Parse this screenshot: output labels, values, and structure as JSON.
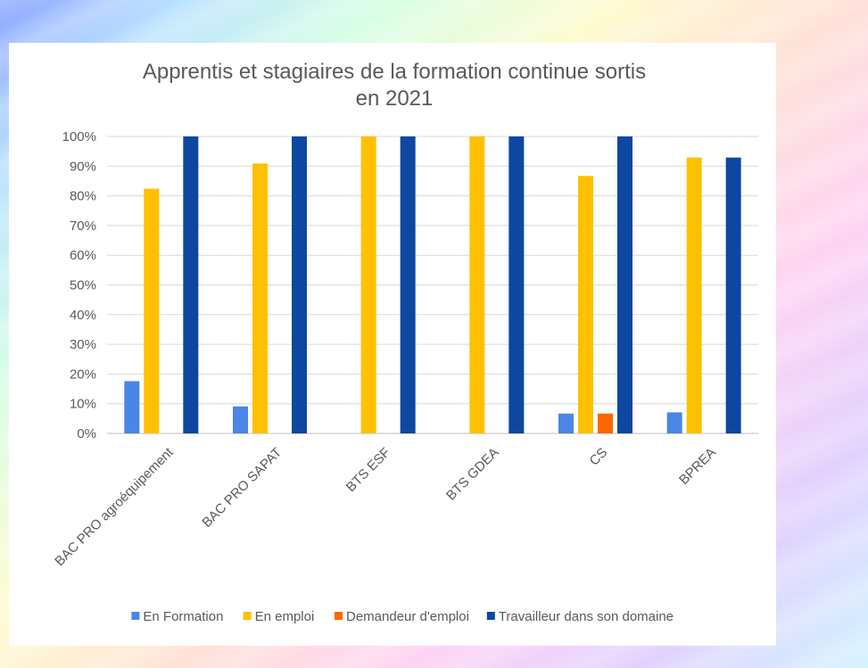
{
  "chart_data": {
    "type": "bar",
    "title_lines": [
      "Apprentis et stagiaires de la formation continue sortis",
      "en 2021"
    ],
    "categories": [
      "BAC PRO agroéquipement",
      "BAC PRO SAPAT",
      "BTS ESF",
      "BTS GDEA",
      "CS",
      "BPREA"
    ],
    "series": [
      {
        "name": "En Formation",
        "color": "#4a86e8",
        "values": [
          17.6,
          9.1,
          0,
          0,
          6.7,
          7.1
        ]
      },
      {
        "name": "En emploi",
        "color": "#ffc000",
        "values": [
          82.4,
          90.9,
          100,
          100,
          86.7,
          92.9
        ]
      },
      {
        "name": "Demandeur d'emploi",
        "color": "#ff6600",
        "values": [
          0,
          0,
          0,
          0,
          6.7,
          0
        ]
      },
      {
        "name": "Travailleur dans son domaine",
        "color": "#0d47a1",
        "values": [
          100,
          100,
          100,
          100,
          100,
          92.9
        ]
      }
    ],
    "y_ticks": [
      "0%",
      "10%",
      "20%",
      "30%",
      "40%",
      "50%",
      "60%",
      "70%",
      "80%",
      "90%",
      "100%"
    ],
    "ylim": [
      0,
      100
    ],
    "grid": true,
    "legend_position": "bottom"
  }
}
